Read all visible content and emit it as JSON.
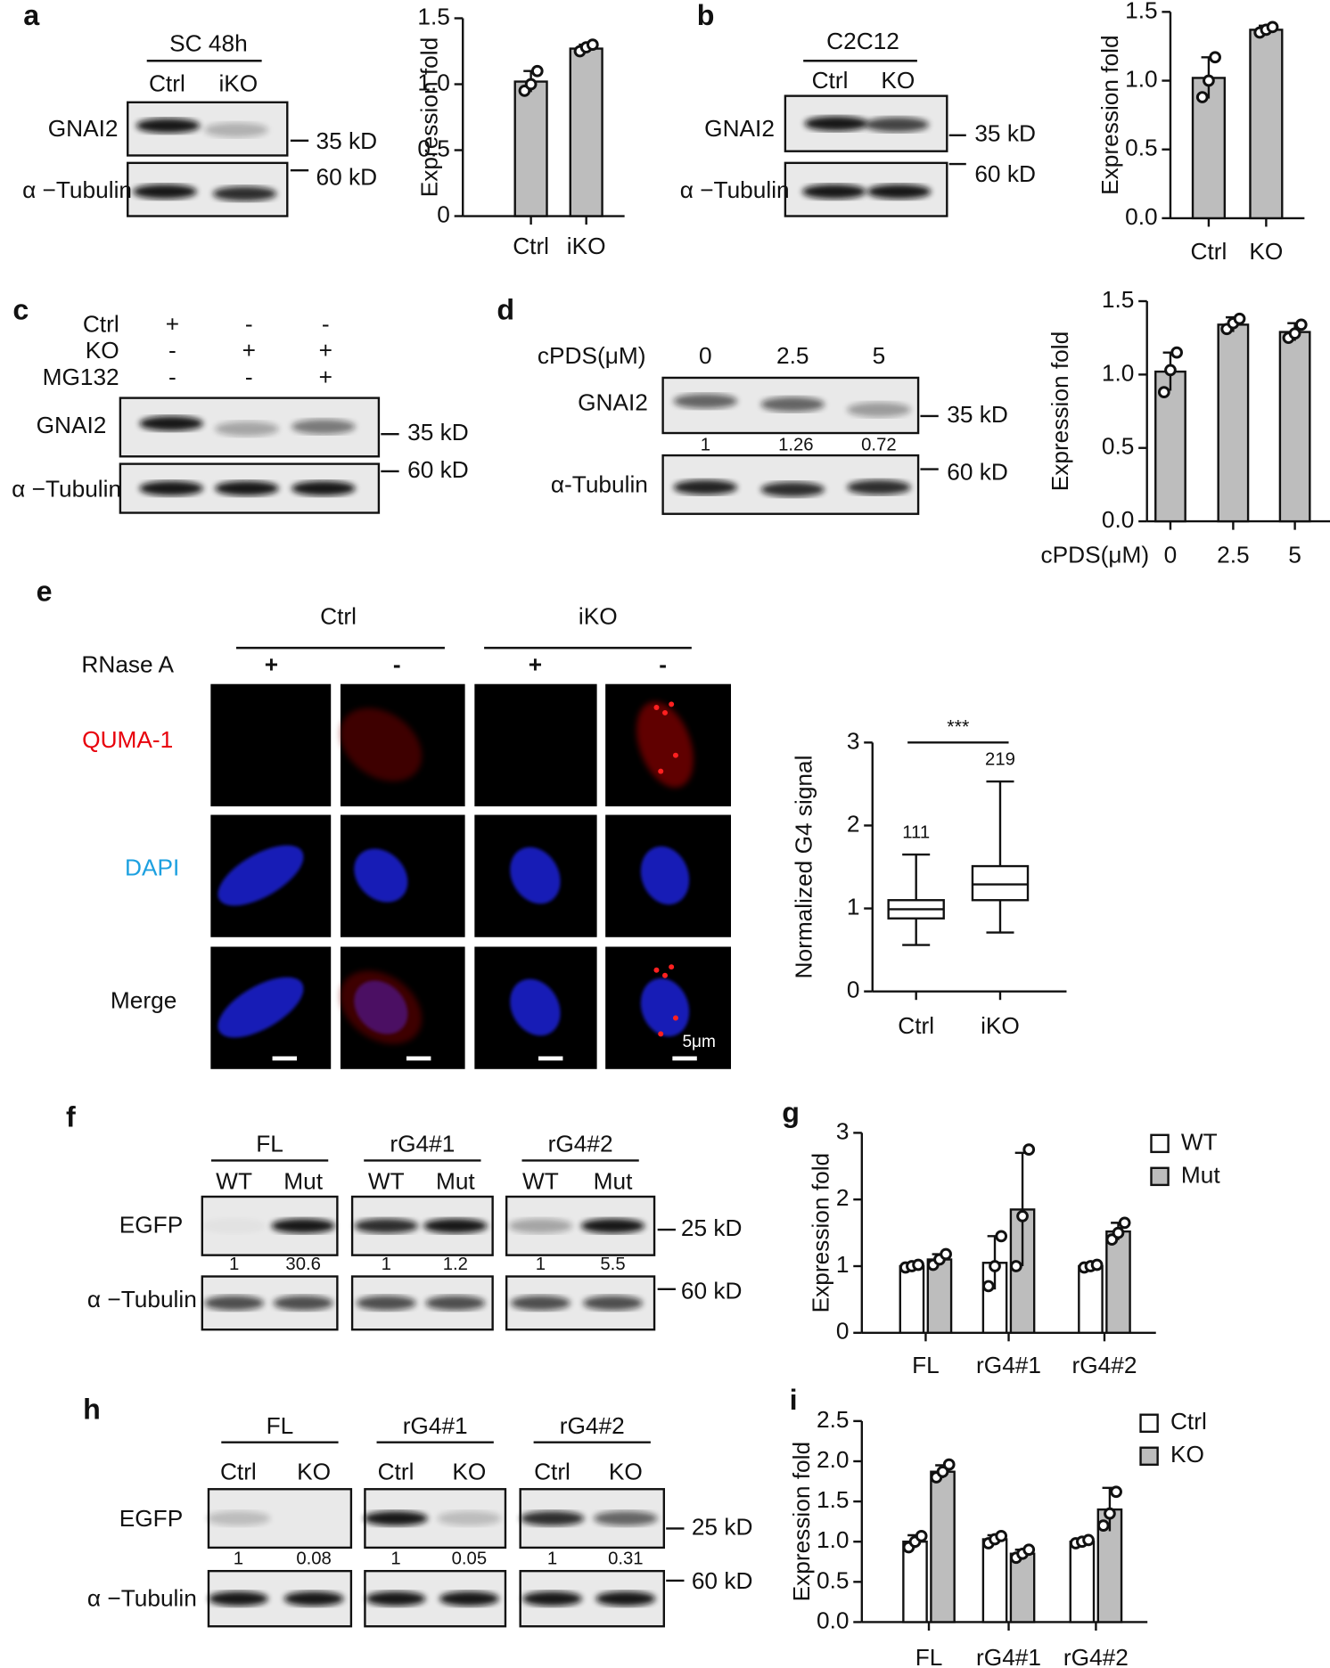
{
  "panels": {
    "a": {
      "label": "a",
      "header": "SC 48h",
      "lanes": [
        "Ctrl",
        "iKO"
      ],
      "rows": [
        "GNAI2",
        "α −Tubulin"
      ],
      "markers": [
        "35 kD",
        "60 kD"
      ]
    },
    "b": {
      "label": "b",
      "header": "C2C12",
      "lanes": [
        "Ctrl",
        "KO"
      ],
      "rows": [
        "GNAI2",
        "α −Tubulin"
      ],
      "markers": [
        "35 kD",
        "60 kD"
      ]
    },
    "c": {
      "label": "c",
      "conditions": [
        [
          "Ctrl",
          "+",
          "-",
          "-"
        ],
        [
          "KO",
          "-",
          "+",
          "+"
        ],
        [
          "MG132",
          "-",
          "-",
          "+"
        ]
      ],
      "rows": [
        "GNAI2",
        "α −Tubulin"
      ],
      "markers": [
        "35 kD",
        "60 kD"
      ]
    },
    "d": {
      "label": "d",
      "treatment": "cPDS(μM)",
      "lanes": [
        "0",
        "2.5",
        "5"
      ],
      "rows": [
        "GNAI2",
        "α-Tubulin"
      ],
      "quantification": [
        "1",
        "1.26",
        "0.72"
      ],
      "markers": [
        "35 kD",
        "60 kD"
      ]
    },
    "e": {
      "label": "e",
      "groups": [
        "Ctrl",
        "iKO"
      ],
      "treatment": "RNase A",
      "signs": [
        "+",
        "-",
        "+",
        "-"
      ],
      "rows": [
        "QUMA-1",
        "DAPI",
        "Merge"
      ],
      "scale_bar": "5μm"
    },
    "f": {
      "label": "f",
      "groups": [
        "FL",
        "rG4#1",
        "rG4#2"
      ],
      "lanes": [
        "WT",
        "Mut",
        "WT",
        "Mut",
        "WT",
        "Mut"
      ],
      "rows": [
        "EGFP",
        "α −Tubulin"
      ],
      "quantification": [
        "1",
        "30.6",
        "1",
        "1.2",
        "1",
        "5.5"
      ],
      "markers": [
        "25 kD",
        "60 kD"
      ]
    },
    "g": {
      "label": "g"
    },
    "h": {
      "label": "h",
      "groups": [
        "FL",
        "rG4#1",
        "rG4#2"
      ],
      "lanes": [
        "Ctrl",
        "KO",
        "Ctrl",
        "KO",
        "Ctrl",
        "KO"
      ],
      "rows": [
        "EGFP",
        "α −Tubulin"
      ],
      "quantification": [
        "1",
        "0.08",
        "1",
        "0.05",
        "1",
        "0.31"
      ],
      "markers": [
        "25 kD",
        "60 kD"
      ]
    },
    "i": {
      "label": "i"
    }
  },
  "chart_data": [
    {
      "type": "bar",
      "ylabel": "Expression fold",
      "categories": [
        "Ctrl",
        "iKO"
      ],
      "values": [
        1.02,
        1.27
      ],
      "errors": [
        0.08,
        0.03
      ],
      "points": [
        [
          0.95,
          1.0,
          1.1
        ],
        [
          1.25,
          1.28,
          1.3
        ]
      ],
      "color": "#bdbdbd",
      "ylim": [
        0,
        1.5
      ],
      "yticks": [
        0,
        0.5,
        {
          "value": 1,
          "label": "1.0"
        },
        1.5
      ]
    },
    {
      "type": "bar",
      "ylabel": "Expression fold",
      "categories": [
        "Ctrl",
        "KO"
      ],
      "values": [
        1.02,
        1.37
      ],
      "errors": [
        0.15,
        0.03
      ],
      "points": [
        [
          0.88,
          1.0,
          1.17
        ],
        [
          1.35,
          1.37,
          1.39
        ]
      ],
      "color": "#bdbdbd",
      "ylim": [
        0,
        1.5
      ],
      "yticks": [
        {
          "value": 0,
          "label": "0.0"
        },
        0.5,
        {
          "value": 1,
          "label": "1.0"
        },
        1.5
      ]
    },
    {
      "type": "bar",
      "ylabel": "Expression fold",
      "xlabel": "cPDS(μM)",
      "categories": [
        "0",
        "2.5",
        "5"
      ],
      "values": [
        1.02,
        1.34,
        1.29
      ],
      "errors": [
        0.13,
        0.05,
        0.06
      ],
      "points": [
        [
          0.88,
          1.03,
          1.15
        ],
        [
          1.31,
          1.35,
          1.38
        ],
        [
          1.25,
          1.28,
          1.34
        ]
      ],
      "color": "#bdbdbd",
      "ylim": [
        0,
        1.5
      ],
      "yticks": [
        {
          "value": 0,
          "label": "0.0"
        },
        0.5,
        {
          "value": 1,
          "label": "1.0"
        },
        1.5
      ]
    },
    {
      "type": "box",
      "ylabel": "Normalized G4 signal",
      "categories": [
        "Ctrl",
        "iKO"
      ],
      "boxes": [
        {
          "min": 0.56,
          "q1": 0.88,
          "median": 0.99,
          "q3": 1.1,
          "max": 1.65
        },
        {
          "min": 0.71,
          "q1": 1.1,
          "median": 1.29,
          "q3": 1.51,
          "max": 2.53
        }
      ],
      "annotations": [
        111,
        219
      ],
      "significance": "***",
      "color": "#ffffff",
      "ylim": [
        0,
        3
      ],
      "yticks": [
        0,
        1,
        2,
        3
      ]
    },
    {
      "type": "bar",
      "ylabel": "Expression fold",
      "categories": [
        "FL",
        "rG4#1",
        "rG4#2"
      ],
      "series": [
        {
          "name": "WT",
          "color": "#ffffff",
          "values": [
            1.0,
            1.05,
            1.0
          ],
          "errors": [
            0.03,
            0.4,
            0.03
          ],
          "points": [
            [
              0.98,
              1.0,
              1.02
            ],
            [
              0.7,
              1.0,
              1.45
            ],
            [
              0.98,
              1.0,
              1.02
            ]
          ]
        },
        {
          "name": "Mut",
          "color": "#bdbdbd",
          "values": [
            1.1,
            1.85,
            1.52
          ],
          "errors": [
            0.08,
            0.85,
            0.13
          ],
          "points": [
            [
              1.02,
              1.1,
              1.18
            ],
            [
              1.0,
              1.75,
              2.75
            ],
            [
              1.4,
              1.5,
              1.65
            ]
          ]
        }
      ],
      "ylim": [
        0,
        3
      ],
      "yticks": [
        0,
        1,
        2,
        3
      ],
      "legend": "top-right"
    },
    {
      "type": "bar",
      "ylabel": "Expression fold",
      "categories": [
        "FL",
        "rG4#1",
        "rG4#2"
      ],
      "series": [
        {
          "name": "Ctrl",
          "color": "#ffffff",
          "values": [
            1.0,
            1.03,
            1.0
          ],
          "errors": [
            0.08,
            0.05,
            0.03
          ],
          "points": [
            [
              0.93,
              1.0,
              1.07
            ],
            [
              0.98,
              1.03,
              1.07
            ],
            [
              0.98,
              1.0,
              1.02
            ]
          ]
        },
        {
          "name": "KO",
          "color": "#bdbdbd",
          "values": [
            1.87,
            0.85,
            1.4
          ],
          "errors": [
            0.08,
            0.05,
            0.27
          ],
          "points": [
            [
              1.8,
              1.87,
              1.96
            ],
            [
              0.8,
              0.85,
              0.9
            ],
            [
              1.2,
              1.35,
              1.62
            ]
          ]
        }
      ],
      "ylim": [
        0,
        2.5
      ],
      "yticks": [
        {
          "value": 0,
          "label": "0.0"
        },
        0.5,
        {
          "value": 1,
          "label": "1.0"
        },
        1.5,
        {
          "value": 2,
          "label": "2.0"
        },
        2.5
      ],
      "legend": "top-right"
    }
  ]
}
